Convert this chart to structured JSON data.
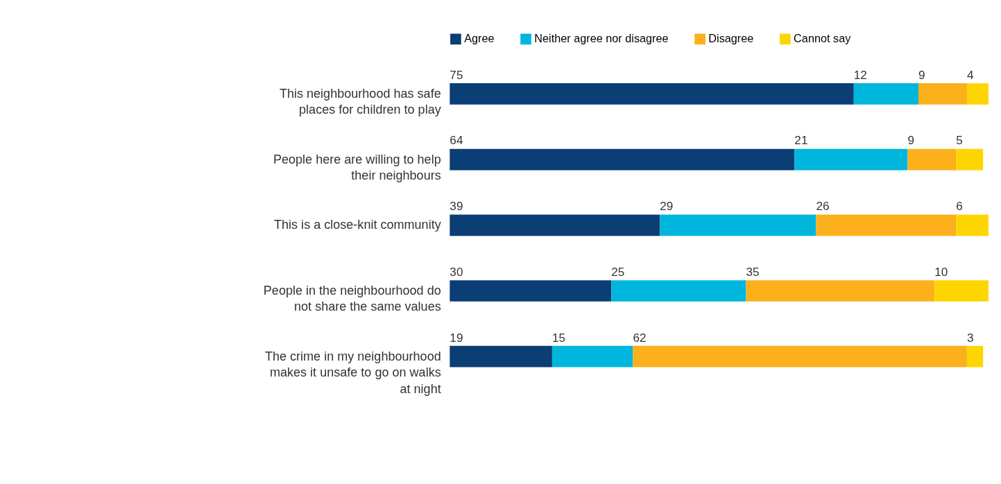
{
  "chart_data": {
    "type": "bar",
    "orientation": "horizontal",
    "stacked": true,
    "data_labels": true,
    "legend": "top",
    "categories": [
      "This neighbourhood has safe places for children to play",
      "People here are willing to help their neighbours",
      "This is a close-knit community",
      "People in the neighbourhood do not share the same values",
      "The crime in my neighbourhood makes it unsafe to go on walks at night"
    ],
    "series": [
      {
        "name": "Agree",
        "color": "#0b3e75",
        "values": [
          75,
          64,
          39,
          30,
          19
        ]
      },
      {
        "name": "Neither agree nor disagree",
        "color": "#00b6dc",
        "values": [
          12,
          21,
          29,
          25,
          15
        ]
      },
      {
        "name": "Disagree",
        "color": "#fbb01c",
        "values": [
          9,
          9,
          26,
          35,
          62
        ]
      },
      {
        "name": "Cannot say",
        "color": "#fdd500",
        "values": [
          4,
          5,
          6,
          10,
          3
        ]
      }
    ]
  }
}
